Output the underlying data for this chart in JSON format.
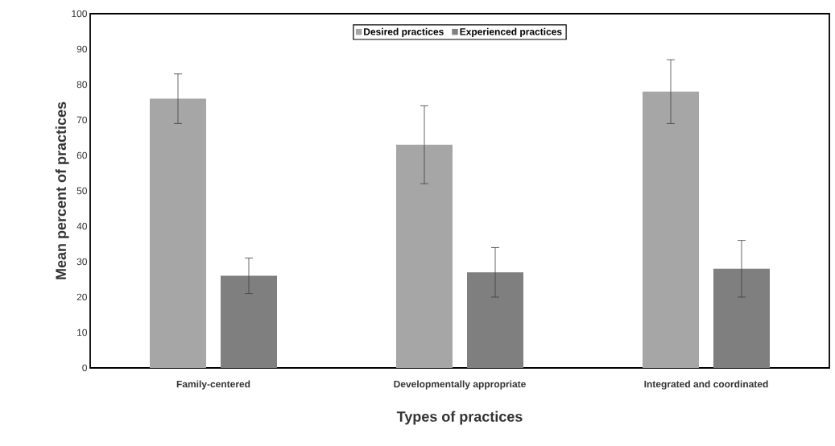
{
  "chart_data": {
    "type": "bar",
    "xlabel": "Types of practices",
    "ylabel": "Mean percent of practices",
    "categories": [
      "Family-centered",
      "Developmentally appropriate",
      "Integrated and coordinated"
    ],
    "series": [
      {
        "name": "Desired practices",
        "color": "#a6a6a6",
        "values": [
          76,
          63,
          78
        ],
        "errors": [
          7,
          11,
          9
        ]
      },
      {
        "name": "Experienced practices",
        "color": "#7f7f7f",
        "values": [
          26,
          27,
          28
        ],
        "errors": [
          5,
          7,
          8
        ]
      }
    ],
    "ylim": [
      0,
      100
    ],
    "yticks": [
      0,
      10,
      20,
      30,
      40,
      50,
      60,
      70,
      80,
      90,
      100
    ],
    "grid": false,
    "legend": "top"
  }
}
